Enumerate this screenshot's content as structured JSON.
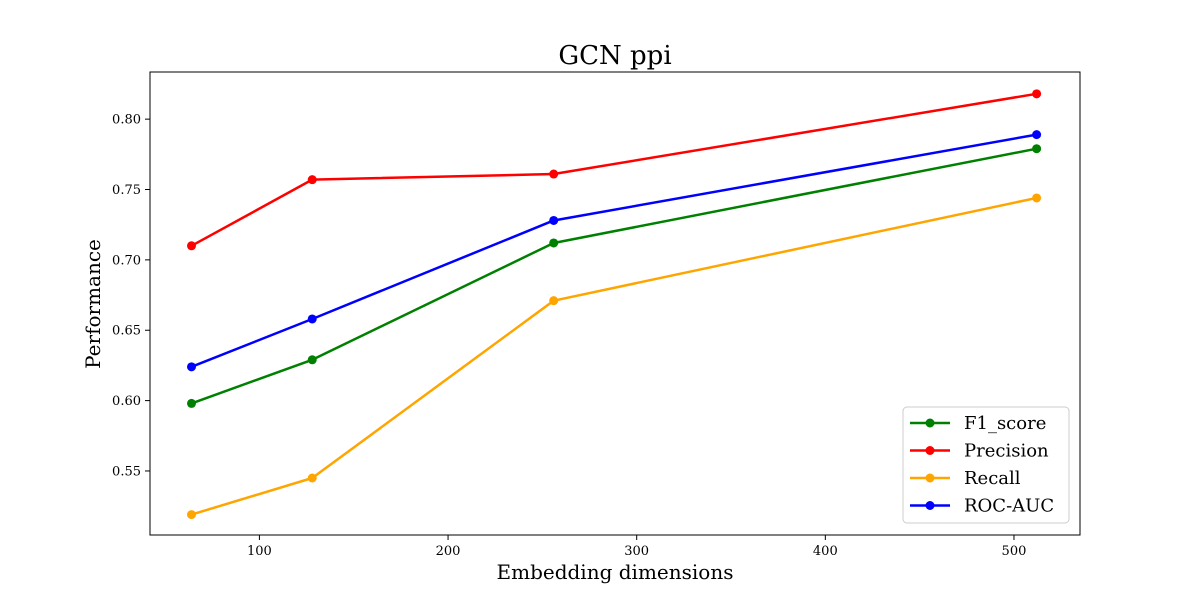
{
  "chart_data": {
    "type": "line",
    "title": "GCN ppi",
    "xlabel": "Embedding dimensions",
    "ylabel": "Performance",
    "x": [
      64,
      128,
      256,
      512
    ],
    "xlim": [
      42,
      535
    ],
    "ylim": [
      0.5045,
      0.8335
    ],
    "xticks": [
      100,
      200,
      300,
      400,
      500
    ],
    "yticks": [
      0.55,
      0.6,
      0.65,
      0.7,
      0.75,
      0.8
    ],
    "ytick_labels": [
      "0.55",
      "0.60",
      "0.65",
      "0.70",
      "0.75",
      "0.80"
    ],
    "grid": false,
    "legend_position": "lower-right",
    "series": [
      {
        "name": "F1_score",
        "color": "#008000",
        "values": [
          0.598,
          0.629,
          0.712,
          0.779
        ]
      },
      {
        "name": "Precision",
        "color": "#ff0000",
        "values": [
          0.71,
          0.757,
          0.761,
          0.818
        ]
      },
      {
        "name": "Recall",
        "color": "#ffa500",
        "values": [
          0.519,
          0.545,
          0.671,
          0.744
        ]
      },
      {
        "name": "ROC-AUC",
        "color": "#0000ff",
        "values": [
          0.624,
          0.658,
          0.728,
          0.789
        ]
      }
    ]
  }
}
